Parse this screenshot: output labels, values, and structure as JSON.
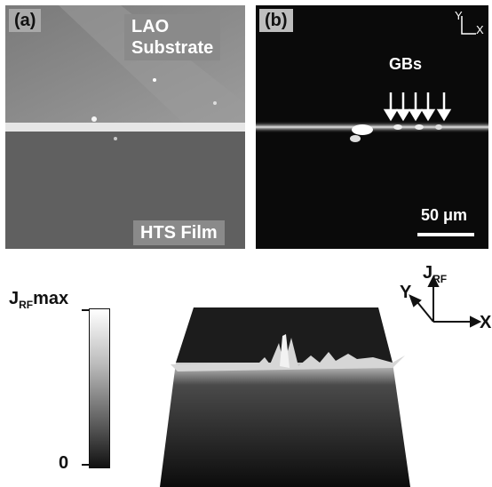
{
  "panel_a": {
    "label": "(a)",
    "substrate_label_line1": "LAO",
    "substrate_label_line2": "Substrate",
    "film_label": "HTS Film"
  },
  "panel_b": {
    "label": "(b)",
    "gb_label": "GBs",
    "scale_label": "50 μm",
    "axis_y": "Y",
    "axis_x": "X"
  },
  "bottom": {
    "colorbar_max_main": "J",
    "colorbar_max_sub": "RF",
    "colorbar_max_suffix": "max",
    "colorbar_min": "0",
    "axis_j_main": "J",
    "axis_j_sub": "RF",
    "axis_y": "Y",
    "axis_x": "X"
  }
}
